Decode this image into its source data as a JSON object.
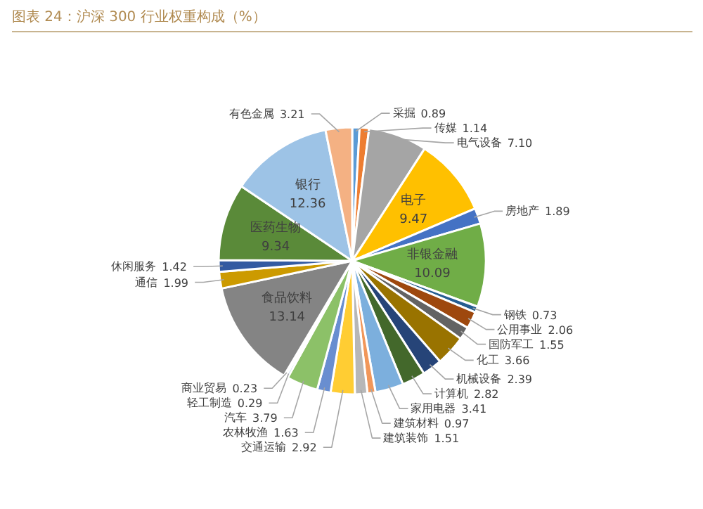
{
  "chart_data": {
    "type": "pie",
    "title": "图表 24：沪深 300 行业权重构成（%）",
    "categories": [
      "采掘",
      "传媒",
      "电气设备",
      "电子",
      "房地产",
      "非银金融",
      "钢铁",
      "公用事业",
      "国防军工",
      "化工",
      "机械设备",
      "计算机",
      "家用电器",
      "建筑材料",
      "建筑装饰",
      "交通运输",
      "农林牧渔",
      "汽车",
      "轻工制造",
      "商业贸易",
      "食品饮料",
      "通信",
      "休闲服务",
      "医药生物",
      "银行",
      "有色金属"
    ],
    "values": [
      0.89,
      1.14,
      7.1,
      9.47,
      1.89,
      10.09,
      0.73,
      2.06,
      1.55,
      3.66,
      2.39,
      2.82,
      3.41,
      0.97,
      1.51,
      2.92,
      1.63,
      3.79,
      0.29,
      0.23,
      13.14,
      1.99,
      1.42,
      9.34,
      12.36,
      3.21
    ],
    "colors": [
      "#5b9bd5",
      "#ed7d31",
      "#a5a5a5",
      "#ffc000",
      "#4472c4",
      "#70ad47",
      "#255e91",
      "#9e480e",
      "#636363",
      "#997300",
      "#264478",
      "#43682b",
      "#7cafdd",
      "#f1975a",
      "#b7b7b7",
      "#ffcd33",
      "#698ed0",
      "#8cc168",
      "#327dc2",
      "#d26012",
      "#848484",
      "#cc9a00",
      "#335aa1",
      "#5a8a39",
      "#9dc3e6",
      "#f4b183"
    ],
    "value_labels": [
      "0.89",
      "1.14",
      "7.10",
      "9.47",
      "1.89",
      "10.09",
      "0.73",
      "2.06",
      "1.55",
      "3.66",
      "2.39",
      "2.82",
      "3.41",
      "0.97",
      "1.51",
      "2.92",
      "1.63",
      "3.79",
      "0.29",
      "0.23",
      "13.14",
      "1.99",
      "1.42",
      "9.34",
      "12.36",
      "3.21"
    ]
  }
}
